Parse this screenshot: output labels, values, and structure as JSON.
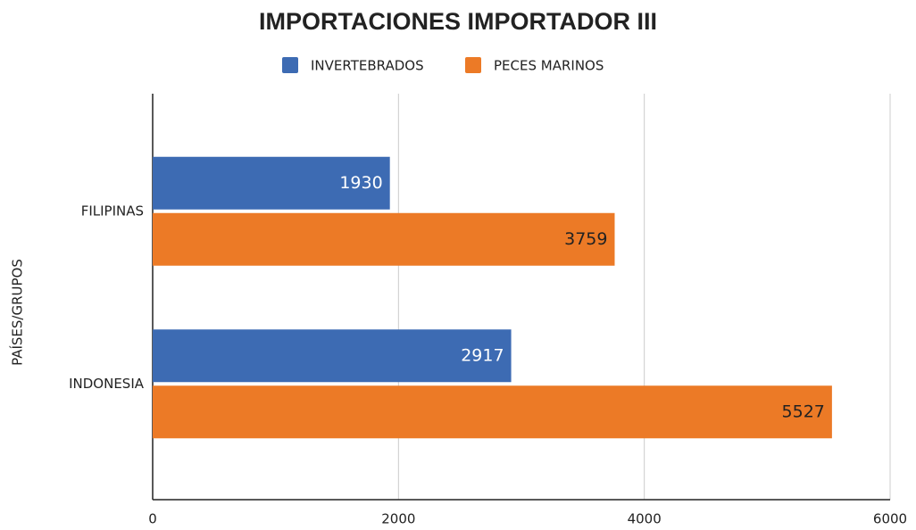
{
  "chart_data": {
    "type": "hbar",
    "title": "IMPORTACIONES IMPORTADOR III",
    "y_label": "PAÍSES/GRUPOS",
    "categories": [
      "FILIPINAS",
      "INDONESIA"
    ],
    "series": [
      {
        "name": "INVERTEBRADOS",
        "color": "#3d6bb3",
        "values": [
          1930,
          2917
        ]
      },
      {
        "name": "PECES MARINOS",
        "color": "#ec7a26",
        "values": [
          3759,
          5527
        ]
      }
    ],
    "xlim": [
      0,
      6000
    ],
    "xticks": [
      0,
      2000,
      4000,
      6000
    ],
    "grid": true,
    "legend": "top"
  }
}
